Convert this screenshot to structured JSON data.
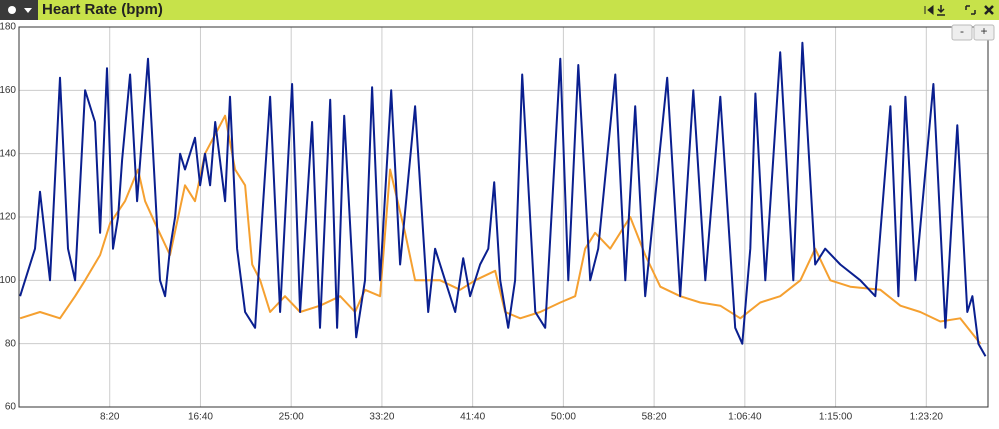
{
  "chart_data": {
    "type": "line",
    "title": "Heart Rate (bpm)",
    "xlim": [
      0,
      5340
    ],
    "ylim": [
      60,
      180
    ],
    "xticks": [
      {
        "value": 500,
        "label": "8:20"
      },
      {
        "value": 1000,
        "label": "16:40"
      },
      {
        "value": 1500,
        "label": "25:00"
      },
      {
        "value": 2000,
        "label": "33:20"
      },
      {
        "value": 2500,
        "label": "41:40"
      },
      {
        "value": 3000,
        "label": "50:00"
      },
      {
        "value": 3500,
        "label": "58:20"
      },
      {
        "value": 4000,
        "label": "1:06:40"
      },
      {
        "value": 4500,
        "label": "1:15:00"
      },
      {
        "value": 5000,
        "label": "1:23:20"
      }
    ],
    "yticks": [
      60,
      80,
      100,
      120,
      140,
      160,
      180
    ],
    "grid": true,
    "series": [
      {
        "color": "#f5a030",
        "x": [
          6,
          116,
          226,
          309,
          364,
          447,
          502,
          584,
          656,
          695,
          750,
          832,
          915,
          970,
          1025,
          1136,
          1191,
          1246,
          1285,
          1329,
          1384,
          1466,
          1549,
          1659,
          1770,
          1852,
          1907,
          1990,
          2045,
          2128,
          2183,
          2321,
          2431,
          2514,
          2624,
          2679,
          2762,
          2872,
          2983,
          3065,
          3120,
          3175,
          3258,
          3368,
          3451,
          3534,
          3644,
          3754,
          3865,
          3975,
          4085,
          4195,
          4306,
          4388,
          4471,
          4581,
          4747,
          4857,
          4967,
          5077,
          5187,
          5298
        ],
        "values": [
          88,
          90,
          88,
          95,
          100,
          108,
          118,
          125,
          135,
          125,
          118,
          108,
          130,
          125,
          140,
          152,
          135,
          130,
          105,
          100,
          90,
          95,
          90,
          92,
          95,
          90,
          97,
          95,
          135,
          115,
          100,
          100,
          97,
          100,
          103,
          90,
          88,
          90,
          93,
          95,
          110,
          115,
          110,
          120,
          108,
          98,
          95,
          93,
          92,
          88,
          93,
          95,
          100,
          110,
          100,
          98,
          97,
          92,
          90,
          87,
          88,
          80
        ]
      },
      {
        "color": "#0a1f8f",
        "x": [
          6,
          88,
          116,
          171,
          226,
          270,
          309,
          364,
          419,
          447,
          485,
          518,
          546,
          568,
          612,
          651,
          711,
          777,
          805,
          832,
          860,
          888,
          915,
          970,
          998,
          1025,
          1053,
          1081,
          1136,
          1163,
          1202,
          1246,
          1301,
          1340,
          1384,
          1439,
          1505,
          1549,
          1615,
          1659,
          1715,
          1753,
          1792,
          1858,
          1907,
          1946,
          1990,
          2051,
          2100,
          2183,
          2255,
          2293,
          2348,
          2404,
          2448,
          2486,
          2541,
          2586,
          2619,
          2652,
          2696,
          2734,
          2773,
          2845,
          2900,
          2983,
          3027,
          3082,
          3148,
          3192,
          3286,
          3341,
          3396,
          3451,
          3572,
          3644,
          3716,
          3782,
          3865,
          3947,
          3986,
          4030,
          4058,
          4113,
          4195,
          4267,
          4317,
          4388,
          4443,
          4526,
          4636,
          4719,
          4802,
          4846,
          4885,
          4940,
          5039,
          5105,
          5171,
          5226,
          5254,
          5287,
          5326
        ],
        "values": [
          95,
          110,
          128,
          100,
          164,
          110,
          100,
          160,
          150,
          115,
          167,
          110,
          120,
          138,
          165,
          125,
          170,
          100,
          95,
          110,
          120,
          140,
          135,
          145,
          130,
          140,
          130,
          150,
          125,
          158,
          110,
          90,
          85,
          120,
          158,
          90,
          162,
          90,
          150,
          85,
          157,
          85,
          152,
          82,
          100,
          161,
          100,
          160,
          105,
          155,
          90,
          110,
          100,
          90,
          107,
          95,
          105,
          110,
          131,
          100,
          85,
          100,
          165,
          90,
          85,
          170,
          100,
          168,
          100,
          110,
          165,
          100,
          155,
          95,
          164,
          95,
          160,
          100,
          158,
          85,
          80,
          110,
          159,
          100,
          172,
          100,
          175,
          105,
          110,
          105,
          100,
          95,
          155,
          95,
          158,
          100,
          162,
          85,
          149,
          90,
          95,
          80,
          76
        ]
      }
    ]
  },
  "controls": {
    "zoom_out": "-",
    "zoom_in": "+"
  }
}
